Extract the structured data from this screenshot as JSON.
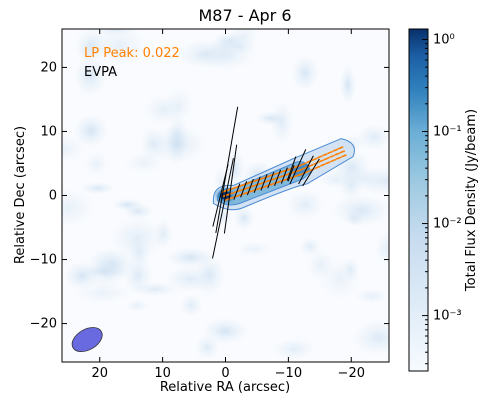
{
  "chart_data": {
    "type": "heatmap",
    "title": "M87 - Apr 6",
    "xlabel": "Relative RA (arcsec)",
    "ylabel": "Relative Dec (arcsec)",
    "xlim": [
      26,
      -26
    ],
    "ylim": [
      -26,
      26
    ],
    "x_reversed": true,
    "xticks": [
      20,
      10,
      0,
      -10,
      -20
    ],
    "xtick_labels": [
      "20",
      "10",
      "0",
      "−10",
      "−20"
    ],
    "yticks": [
      20,
      10,
      0,
      -10,
      -20
    ],
    "ytick_labels": [
      "20",
      "10",
      "0",
      "−10",
      "−20"
    ],
    "grid": false,
    "annotations": {
      "lp_peak": "LP Peak: 0.022",
      "evpa": "EVPA"
    },
    "colorbar": {
      "label": "Total Flux Density (Jy/beam)",
      "scale": "log",
      "range": [
        0.00025,
        1.3
      ],
      "ticks": [
        1,
        0.1,
        0.01,
        0.001
      ],
      "tick_labels": [
        "10⁰",
        "10⁻¹",
        "10⁻²",
        "10⁻³"
      ],
      "cmap": "Blues"
    },
    "jet": {
      "core_position": [
        0,
        0
      ],
      "knot_position": [
        -12,
        4
      ],
      "end_position": [
        -19,
        7
      ]
    },
    "beam": {
      "center": [
        22,
        -22.5
      ],
      "major_arcsec": 2.6,
      "minor_arcsec": 1.6,
      "color": "#6a6ae0"
    },
    "evpa_vectors": [
      {
        "x": -0.2,
        "y": 4,
        "len": 20,
        "angle": 80
      },
      {
        "x": 0.4,
        "y": -2,
        "len": 16,
        "angle": 78
      },
      {
        "x": -0.8,
        "y": 1,
        "len": 14,
        "angle": 82
      },
      {
        "x": 0.8,
        "y": 0,
        "len": 10,
        "angle": 76
      },
      {
        "x": -11.5,
        "y": 4.5,
        "len": 6,
        "angle": 65
      },
      {
        "x": -12.8,
        "y": 4,
        "len": 5,
        "angle": 62
      },
      {
        "x": -13.6,
        "y": 3.6,
        "len": 5,
        "angle": 58
      },
      {
        "x": -10.5,
        "y": 4.2,
        "len": 4,
        "angle": 70
      }
    ],
    "colors": {
      "lp_text": "#ff8000",
      "evpa_text": "#000000",
      "contour": "#4a8ad4",
      "lp_dash": "#ff8000"
    }
  }
}
